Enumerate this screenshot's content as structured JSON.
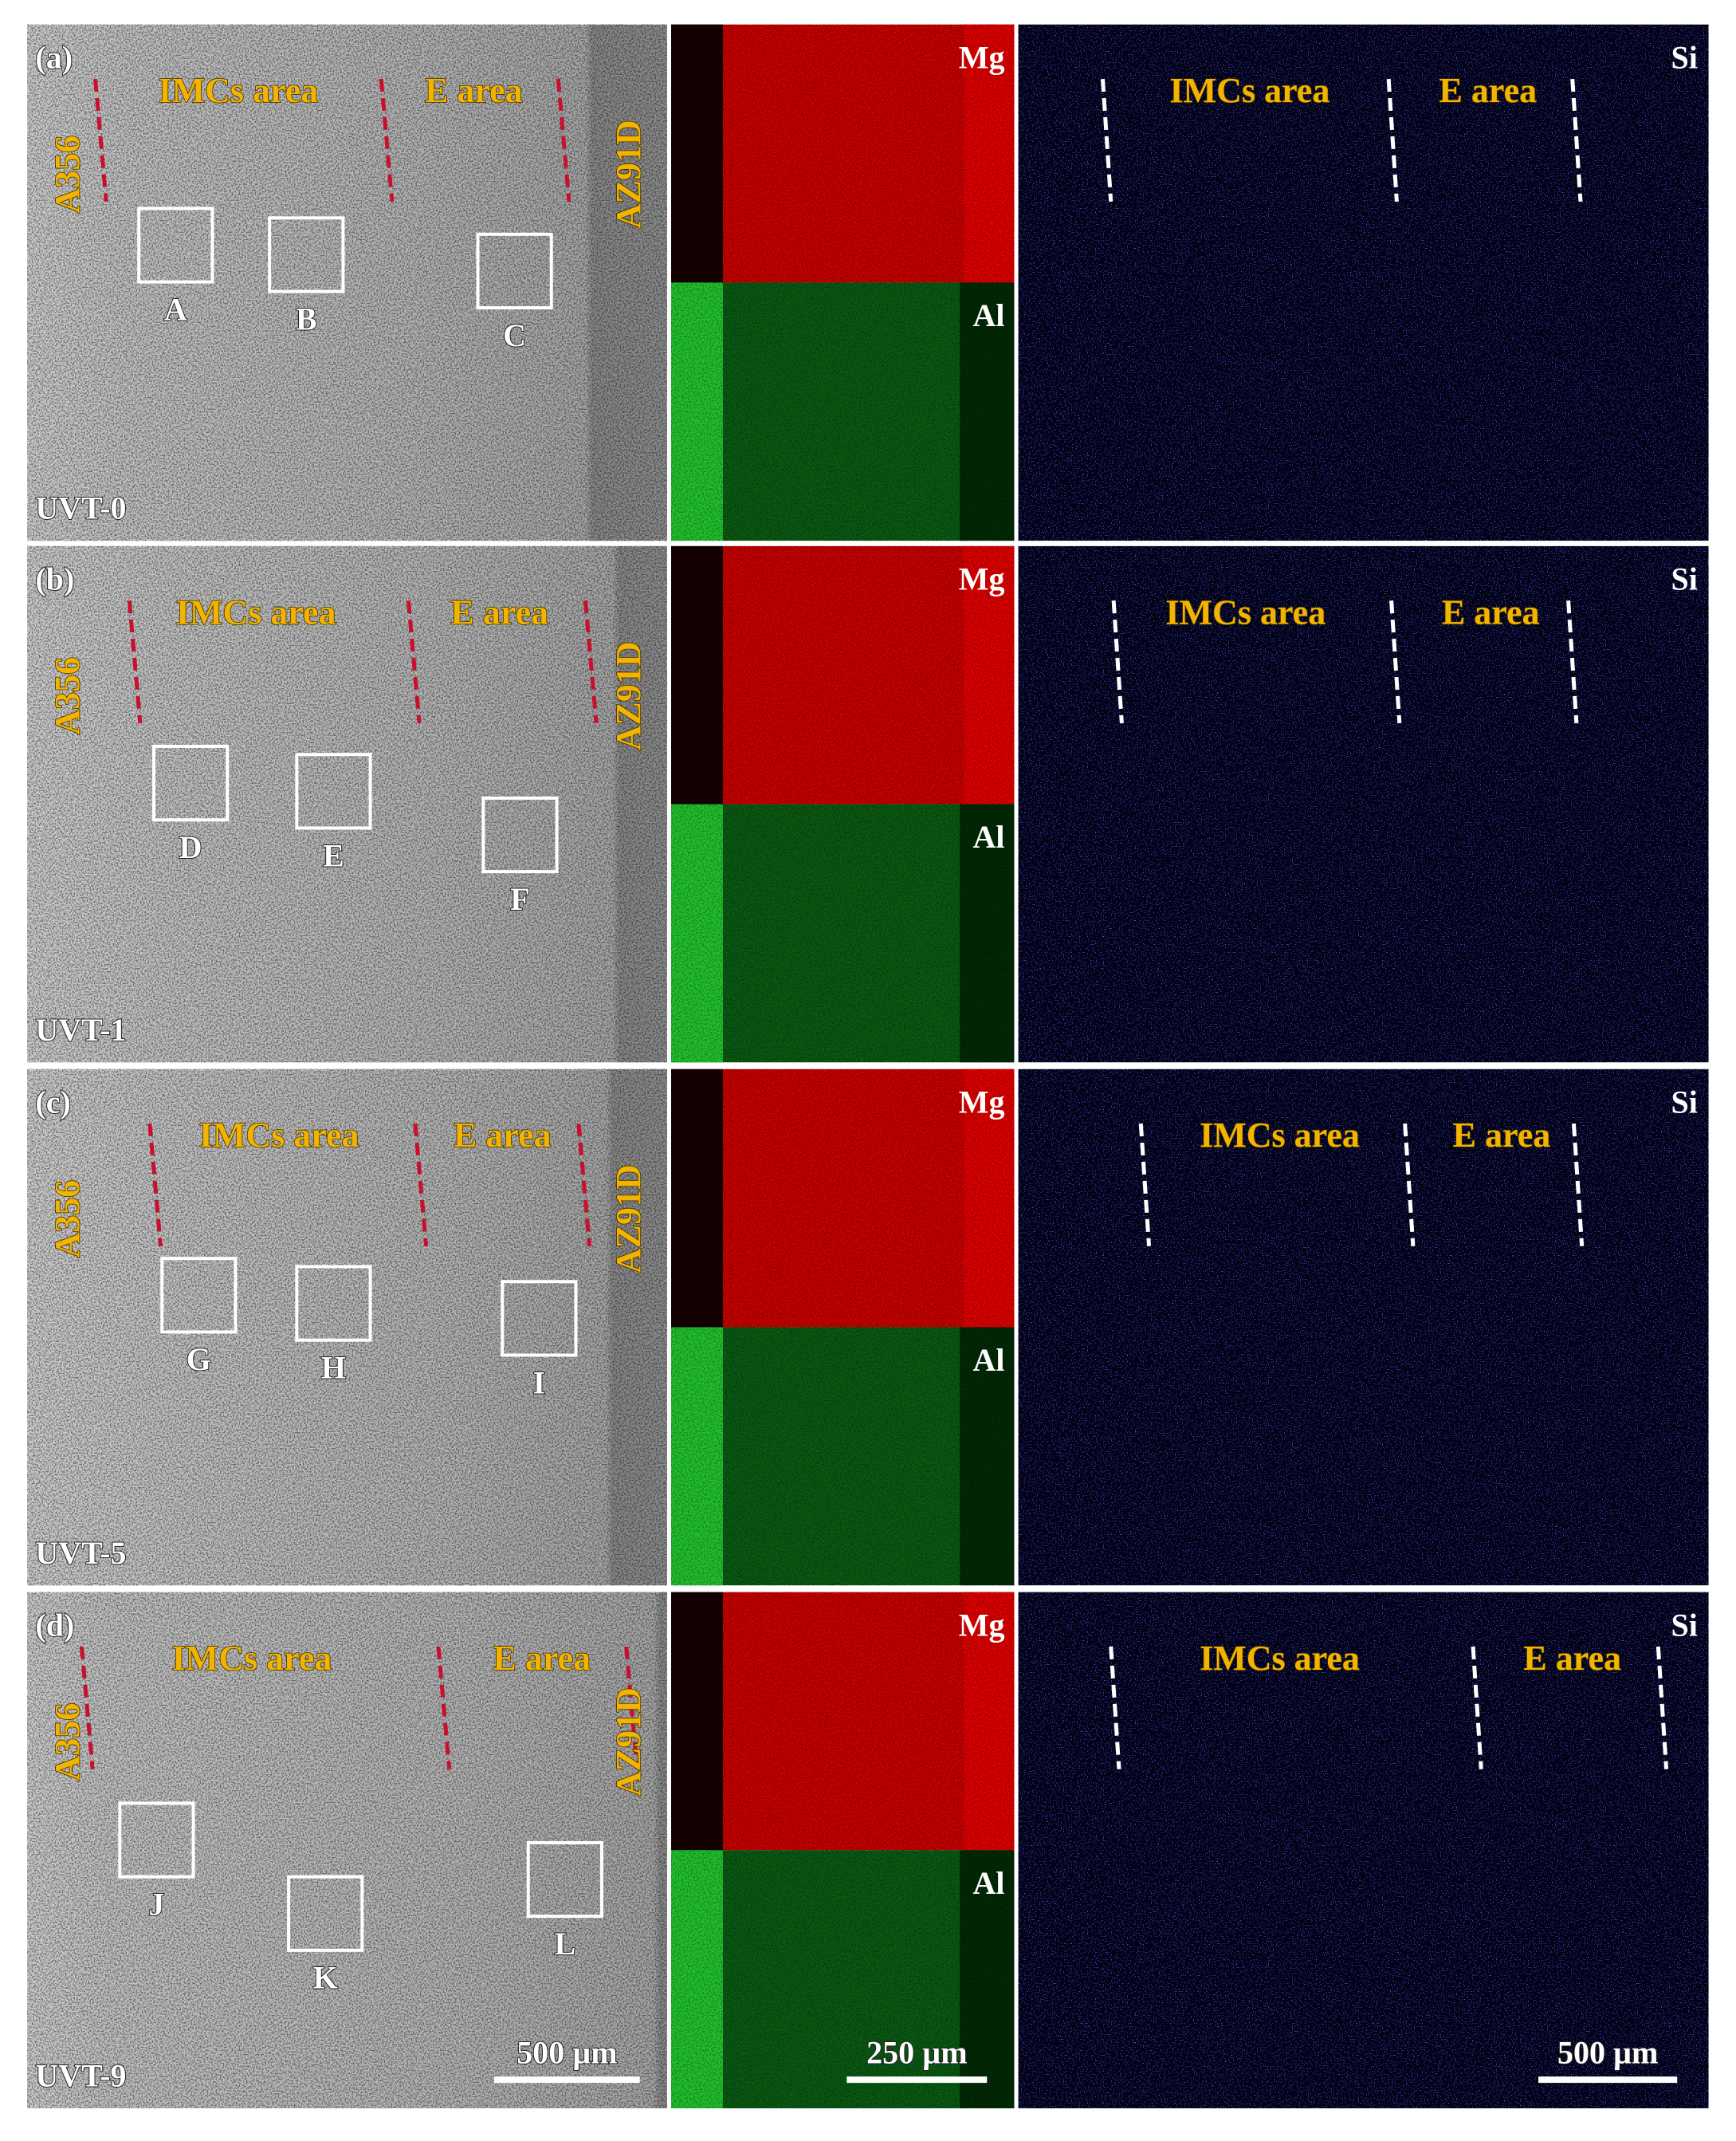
{
  "figure": {
    "rows": [
      {
        "panel": "(a)",
        "sample": "UVT-0",
        "left_alloy": "A356",
        "right_alloy": "AZ91D",
        "imcs_label": "IMCs area",
        "e_label": "E area",
        "boxes": [
          "A",
          "B",
          "C"
        ],
        "mg": "Mg",
        "al": "Al",
        "si": "Si",
        "si_imcs_label": "IMCs area",
        "si_e_label": "E area"
      },
      {
        "panel": "(b)",
        "sample": "UVT-1",
        "left_alloy": "A356",
        "right_alloy": "AZ91D",
        "imcs_label": "IMCs area",
        "e_label": "E area",
        "boxes": [
          "D",
          "E",
          "F"
        ],
        "mg": "Mg",
        "al": "Al",
        "si": "Si",
        "si_imcs_label": "IMCs area",
        "si_e_label": "E area"
      },
      {
        "panel": "(c)",
        "sample": "UVT-5",
        "left_alloy": "A356",
        "right_alloy": "AZ91D",
        "imcs_label": "IMCs area",
        "e_label": "E area",
        "boxes": [
          "G",
          "H",
          "I"
        ],
        "mg": "Mg",
        "al": "Al",
        "si": "Si",
        "si_imcs_label": "IMCs area",
        "si_e_label": "E area"
      },
      {
        "panel": "(d)",
        "sample": "UVT-9",
        "left_alloy": "A356",
        "right_alloy": "AZ91D",
        "imcs_label": "IMCs area",
        "e_label": "E area",
        "boxes": [
          "J",
          "K",
          "L"
        ],
        "mg": "Mg",
        "al": "Al",
        "si": "Si",
        "si_imcs_label": "IMCs area",
        "si_e_label": "E area"
      }
    ],
    "scale_bars": {
      "sem": "500 µm",
      "eds_mg_al": "250 µm",
      "eds_si": "500 µm"
    }
  }
}
